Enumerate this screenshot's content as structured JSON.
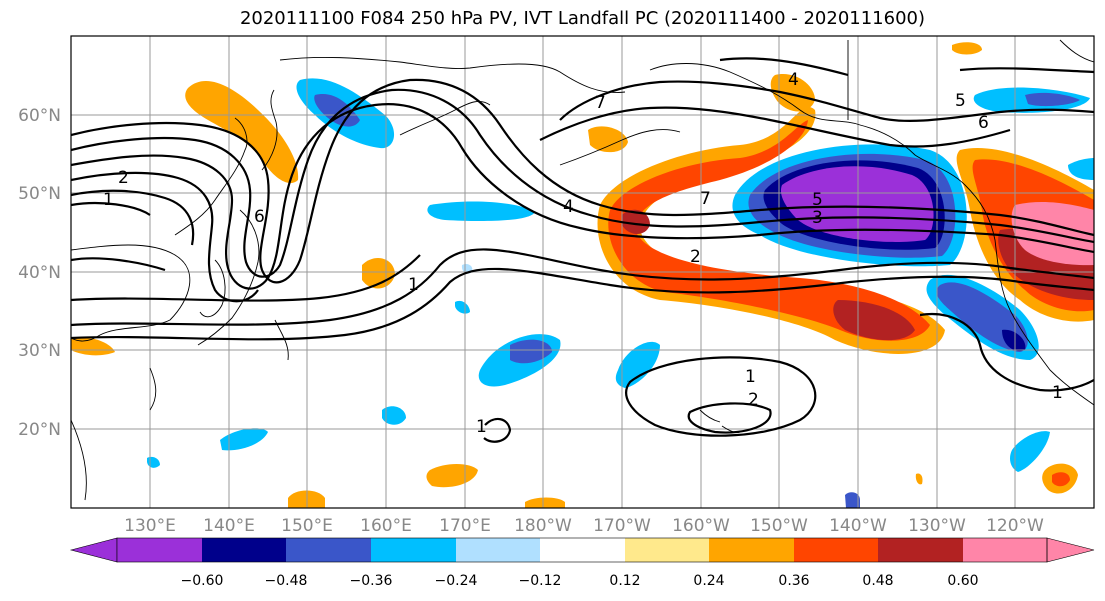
{
  "title": "2020111100 F084 250 hPa PV, IVT Landfall PC (2020111400 - 2020111600)",
  "lat_labels": [
    "60°N",
    "50°N",
    "40°N",
    "30°N",
    "20°N"
  ],
  "lon_labels": [
    "130°E",
    "140°E",
    "150°E",
    "160°E",
    "170°E",
    "180°W",
    "170°W",
    "160°W",
    "150°W",
    "140°W",
    "130°W",
    "120°W"
  ],
  "colorbar": {
    "colors": [
      "#9b30d9",
      "#00008b",
      "#3a56c9",
      "#00bfff",
      "#b0e0ff",
      "#ffffff",
      "#ffe98c",
      "#ffa500",
      "#ff4500",
      "#b22222",
      "#ff85a8"
    ],
    "tick_labels": [
      "−0.60",
      "−0.48",
      "−0.36",
      "−0.24",
      "−0.12",
      "0.12",
      "0.24",
      "0.36",
      "0.48",
      "0.60"
    ]
  },
  "contour_labels": [
    "2",
    "1",
    "6",
    "7",
    "4",
    "5",
    "6",
    "4",
    "7",
    "5",
    "3",
    "2",
    "1",
    "1",
    "2",
    "1",
    "1"
  ],
  "fills": {
    "neg": "#3a56c9",
    "neg_light": "#00bfff",
    "neg_dark": "#00008b",
    "neg_core": "#9b30d9",
    "pos": "#ffa500",
    "pos_mid": "#ff4500",
    "pos_dark": "#b22222",
    "pos_pink": "#ff85a8"
  }
}
